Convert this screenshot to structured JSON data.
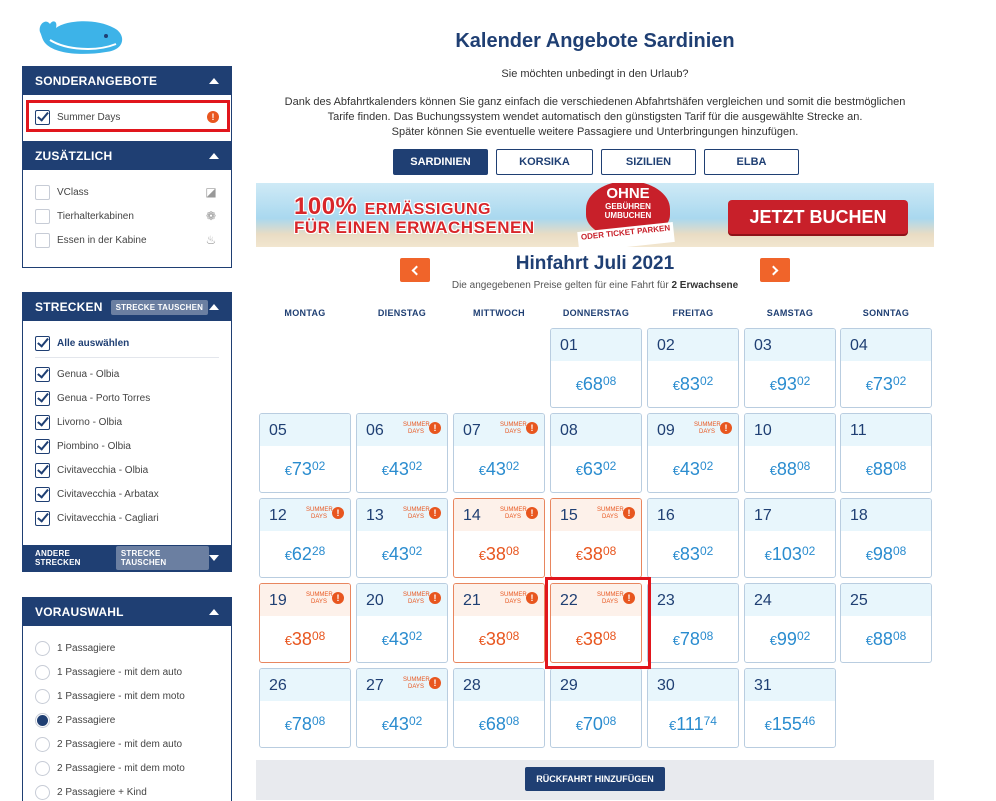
{
  "sidebar": {
    "sonderangebote": {
      "title": "SONDERANGEBOTE",
      "items": [
        {
          "label": "Summer Days",
          "checked": true
        }
      ]
    },
    "zusaetzlich": {
      "title": "ZUSÄTZLICH",
      "items": [
        {
          "label": "VClass",
          "checked": false,
          "icon": "vclass-icon"
        },
        {
          "label": "Tierhalterkabinen",
          "checked": false,
          "icon": "paw-icon"
        },
        {
          "label": "Essen in der Kabine",
          "checked": false,
          "icon": "food-icon"
        }
      ]
    },
    "strecken": {
      "title": "STRECKEN",
      "swap_label": "STRECKE TAUSCHEN",
      "select_all": "Alle auswählen",
      "items": [
        {
          "label": "Genua - Olbia",
          "checked": true
        },
        {
          "label": "Genua - Porto Torres",
          "checked": true
        },
        {
          "label": "Livorno - Olbia",
          "checked": true
        },
        {
          "label": "Piombino - Olbia",
          "checked": true
        },
        {
          "label": "Civitavecchia - Olbia",
          "checked": true
        },
        {
          "label": "Civitavecchia - Arbatax",
          "checked": true
        },
        {
          "label": "Civitavecchia - Cagliari",
          "checked": true
        }
      ],
      "other_title": "ANDERE STRECKEN",
      "other_swap_label": "STRECKE TAUSCHEN"
    },
    "vorauswahl": {
      "title": "VORAUSWAHL",
      "items": [
        {
          "label": "1 Passagiere",
          "selected": false
        },
        {
          "label": "1 Passagiere - mit dem auto",
          "selected": false
        },
        {
          "label": "1 Passagiere - mit dem moto",
          "selected": false
        },
        {
          "label": "2 Passagiere",
          "selected": true
        },
        {
          "label": "2 Passagiere - mit dem auto",
          "selected": false
        },
        {
          "label": "2 Passagiere - mit dem moto",
          "selected": false
        },
        {
          "label": "2 Passagiere + Kind",
          "selected": false
        }
      ]
    }
  },
  "main": {
    "title": "Kalender Angebote Sardinien",
    "intro_line1": "Sie möchten unbedingt in den Urlaub?",
    "intro_line2": "Dank des Abfahrtkalenders können Sie ganz einfach die verschiedenen Abfahrtshäfen vergleichen und somit die bestmöglichen",
    "intro_line3": "Tarife finden. Das Buchungssystem wendet automatisch den günstigsten Tarif für die ausgewählte Strecke an.",
    "intro_line4": "Später können Sie eventuelle weitere Passagiere und Unterbringungen hinzufügen.",
    "tabs": [
      {
        "label": "SARDINIEN",
        "active": true
      },
      {
        "label": "KORSIKA"
      },
      {
        "label": "SIZILIEN"
      },
      {
        "label": "ELBA"
      }
    ],
    "banner": {
      "line1_big": "100%",
      "line1_rest": "ERMÄSSIGUNG",
      "line2": "FÜR EINEN ERWACHSENEN",
      "stamp_big": "OHNE",
      "stamp_small": "GEBÜHREN UMBUCHEN",
      "ribbon": "ODER TICKET PARKEN",
      "cta": "JETZT BUCHEN"
    },
    "month_title": "Hinfahrt Juli 2021",
    "note_prefix": "Die angegebenen Preise gelten für eine Fahrt für",
    "note_bold": "2 Erwachsene",
    "weekdays": [
      "MONTAG",
      "DIENSTAG",
      "MITTWOCH",
      "DONNERSTAG",
      "FREITAG",
      "SAMSTAG",
      "SONNTAG"
    ],
    "summer_days_label": "SUMMER DAYS",
    "currency": "€",
    "days": [
      {
        "day": "01",
        "int": "68",
        "dec": "08",
        "summer": false,
        "promo": false
      },
      {
        "day": "02",
        "int": "83",
        "dec": "02",
        "summer": false,
        "promo": false
      },
      {
        "day": "03",
        "int": "93",
        "dec": "02",
        "summer": false,
        "promo": false
      },
      {
        "day": "04",
        "int": "73",
        "dec": "02",
        "summer": false,
        "promo": false
      },
      {
        "day": "05",
        "int": "73",
        "dec": "02",
        "summer": false,
        "promo": false
      },
      {
        "day": "06",
        "int": "43",
        "dec": "02",
        "summer": true,
        "promo": false
      },
      {
        "day": "07",
        "int": "43",
        "dec": "02",
        "summer": true,
        "promo": false
      },
      {
        "day": "08",
        "int": "63",
        "dec": "02",
        "summer": false,
        "promo": false
      },
      {
        "day": "09",
        "int": "43",
        "dec": "02",
        "summer": true,
        "promo": false
      },
      {
        "day": "10",
        "int": "88",
        "dec": "08",
        "summer": false,
        "promo": false
      },
      {
        "day": "11",
        "int": "88",
        "dec": "08",
        "summer": false,
        "promo": false
      },
      {
        "day": "12",
        "int": "62",
        "dec": "28",
        "summer": true,
        "promo": false
      },
      {
        "day": "13",
        "int": "43",
        "dec": "02",
        "summer": true,
        "promo": false
      },
      {
        "day": "14",
        "int": "38",
        "dec": "08",
        "summer": true,
        "promo": true
      },
      {
        "day": "15",
        "int": "38",
        "dec": "08",
        "summer": true,
        "promo": true
      },
      {
        "day": "16",
        "int": "83",
        "dec": "02",
        "summer": false,
        "promo": false
      },
      {
        "day": "17",
        "int": "103",
        "dec": "02",
        "summer": false,
        "promo": false
      },
      {
        "day": "18",
        "int": "98",
        "dec": "08",
        "summer": false,
        "promo": false
      },
      {
        "day": "19",
        "int": "38",
        "dec": "08",
        "summer": true,
        "promo": true
      },
      {
        "day": "20",
        "int": "43",
        "dec": "02",
        "summer": true,
        "promo": false
      },
      {
        "day": "21",
        "int": "38",
        "dec": "08",
        "summer": true,
        "promo": true
      },
      {
        "day": "22",
        "int": "38",
        "dec": "08",
        "summer": true,
        "promo": true
      },
      {
        "day": "23",
        "int": "78",
        "dec": "08",
        "summer": false,
        "promo": false
      },
      {
        "day": "24",
        "int": "99",
        "dec": "02",
        "summer": false,
        "promo": false
      },
      {
        "day": "25",
        "int": "88",
        "dec": "08",
        "summer": false,
        "promo": false
      },
      {
        "day": "26",
        "int": "78",
        "dec": "08",
        "summer": false,
        "promo": false
      },
      {
        "day": "27",
        "int": "43",
        "dec": "02",
        "summer": true,
        "promo": false
      },
      {
        "day": "28",
        "int": "68",
        "dec": "08",
        "summer": false,
        "promo": false
      },
      {
        "day": "29",
        "int": "70",
        "dec": "08",
        "summer": false,
        "promo": false
      },
      {
        "day": "30",
        "int": "111",
        "dec": "74",
        "summer": false,
        "promo": false
      },
      {
        "day": "31",
        "int": "155",
        "dec": "46",
        "summer": false,
        "promo": false
      }
    ],
    "return_button": "RÜCKFAHRT HINZUFÜGEN"
  },
  "colors": {
    "navy": "#1f3f73",
    "accent_orange": "#f0642a",
    "price_blue": "#2a8ccf",
    "promo_orange": "#e8561f",
    "highlight_red": "#e1161d"
  }
}
